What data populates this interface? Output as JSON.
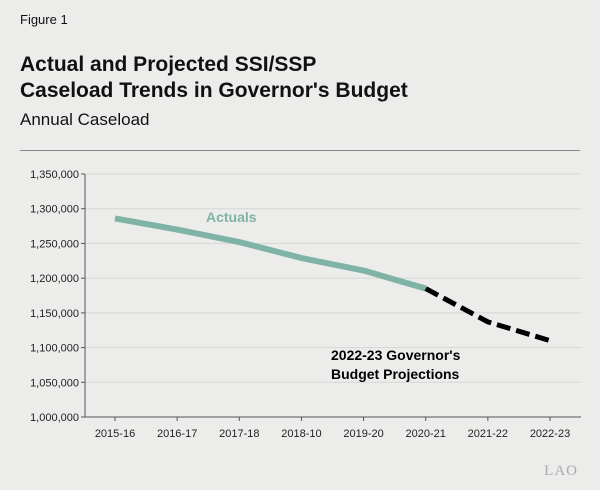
{
  "figure_label": "Figure 1",
  "title_line1": "Actual and Projected SSI/SSP",
  "title_line2": "Caseload Trends in Governor's Budget",
  "subtitle": "Annual Caseload",
  "logo": "LAO",
  "colors": {
    "actuals": "#7fb3a6",
    "projections": "#000000",
    "background": "#ecedeb"
  },
  "chart_data": {
    "type": "line",
    "categories": [
      "2015-16",
      "2016-17",
      "2017-18",
      "2018-10",
      "2019-20",
      "2020-21",
      "2021-22",
      "2022-23"
    ],
    "series": [
      {
        "name": "Actuals",
        "style": "solid",
        "values": [
          1286000,
          1270000,
          1252000,
          1229000,
          1211000,
          1185000,
          null,
          null
        ]
      },
      {
        "name": "2022-23 Governor's Budget Projections",
        "style": "dashed",
        "values": [
          null,
          null,
          null,
          null,
          null,
          1185000,
          1137000,
          1110000
        ]
      }
    ],
    "annotations": [
      "Actuals",
      "2022-23 Governor's",
      "Budget Projections"
    ],
    "ylim": [
      1000000,
      1350000
    ],
    "yticks": [
      "1,000,000",
      "1,050,000",
      "1,100,000",
      "1,150,000",
      "1,200,000",
      "1,250,000",
      "1,300,000",
      "1,350,000"
    ],
    "grid": true,
    "legend": "none (inline labels)"
  }
}
